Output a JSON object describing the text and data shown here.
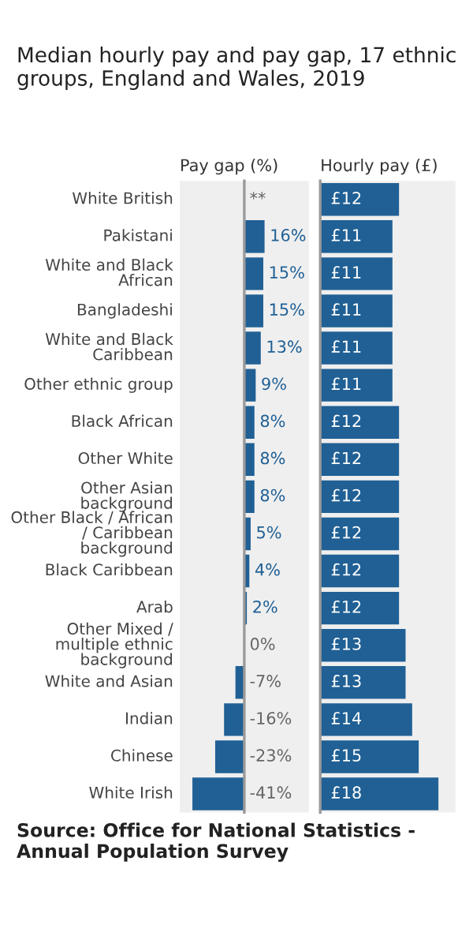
{
  "chart_data": [
    {
      "type": "bar",
      "orientation": "horizontal",
      "title": "Median hourly pay and pay gap, 17 ethnic groups, England and Wales, 2019",
      "xlabel": "Pay gap (%)",
      "categories": [
        "White British",
        "Pakistani",
        "White and Black African",
        "Bangladeshi",
        "White and Black Caribbean",
        "Other ethnic group",
        "Black African",
        "Other White",
        "Other Asian background",
        "Other Black / African / Caribbean background",
        "Black Caribbean",
        "Arab",
        "Other Mixed / multiple ethnic background",
        "White and Asian",
        "Indian",
        "Chinese",
        "White Irish"
      ],
      "values": [
        null,
        16,
        15,
        15,
        13,
        9,
        8,
        8,
        8,
        5,
        4,
        2,
        0,
        -7,
        -16,
        -23,
        -41
      ],
      "value_labels": [
        "**",
        "16%",
        "15%",
        "15%",
        "13%",
        "9%",
        "8%",
        "8%",
        "8%",
        "5%",
        "4%",
        "2%",
        "0%",
        "-7%",
        "-16%",
        "-23%",
        "-41%"
      ],
      "color": "#206095",
      "xlim": [
        -51,
        51
      ],
      "tick_labels": "y",
      "annotations": [
        "Source: Office for National Statistics - Annual Population Survey"
      ]
    },
    {
      "type": "bar",
      "orientation": "horizontal",
      "xlabel": "Hourly pay (£)",
      "categories": [
        null,
        null,
        null,
        null,
        null,
        null,
        null,
        null,
        null,
        null,
        null,
        null,
        null,
        null,
        null,
        null,
        null
      ],
      "values": [
        12,
        11,
        11,
        11,
        11,
        11,
        12,
        12,
        12,
        12,
        12,
        12,
        13,
        13,
        14,
        15,
        18
      ],
      "value_labels": [
        "£12",
        "£11",
        "£11",
        "£11",
        "£11",
        "£11",
        "£12",
        "£12",
        "£12",
        "£12",
        "£12",
        "£12",
        "£13",
        "£13",
        "£14",
        "£15",
        "£18"
      ],
      "color": "#206095",
      "xlim": [
        0,
        20.6
      ],
      "tick_labels": false
    }
  ]
}
